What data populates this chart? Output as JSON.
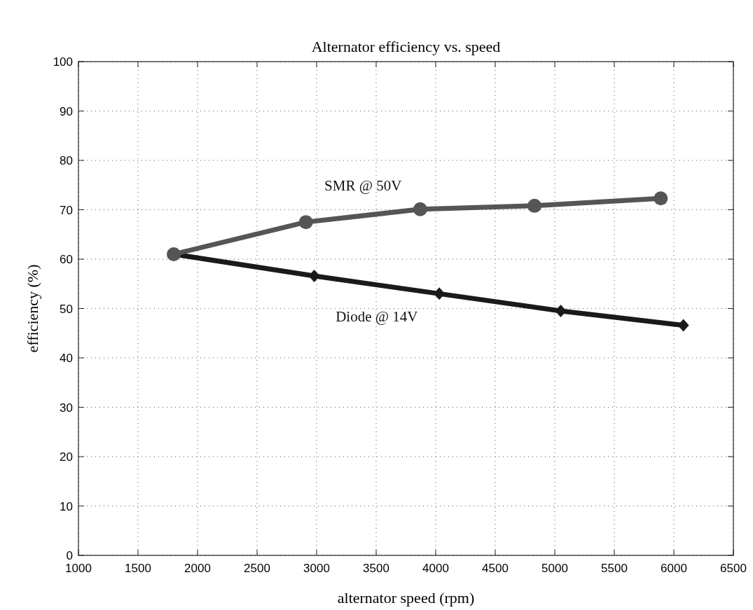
{
  "chart_data": {
    "type": "line",
    "title": "Alternator efficiency vs. speed",
    "xlabel": "alternator speed (rpm)",
    "ylabel": "efficiency (%)",
    "xlim": [
      1000,
      6500
    ],
    "xticks": [
      1000,
      1500,
      2000,
      2500,
      3000,
      3500,
      4000,
      4500,
      5000,
      5500,
      6000,
      6500
    ],
    "ylim": [
      0,
      100
    ],
    "yticks": [
      0,
      10,
      20,
      30,
      40,
      50,
      60,
      70,
      80,
      90,
      100
    ],
    "grid": true,
    "series": [
      {
        "name": "SMR @ 50V",
        "color": "#555555",
        "marker": "circle",
        "x": [
          1800,
          2910,
          3870,
          4830,
          5890
        ],
        "values": [
          61,
          67.5,
          70.1,
          70.8,
          72.3
        ]
      },
      {
        "name": "Diode @ 14V",
        "color": "#1a1a1a",
        "marker": "diamond",
        "x": [
          1800,
          2980,
          4030,
          5050,
          6080
        ],
        "values": [
          61,
          56.6,
          53,
          49.5,
          46.6
        ]
      }
    ]
  }
}
